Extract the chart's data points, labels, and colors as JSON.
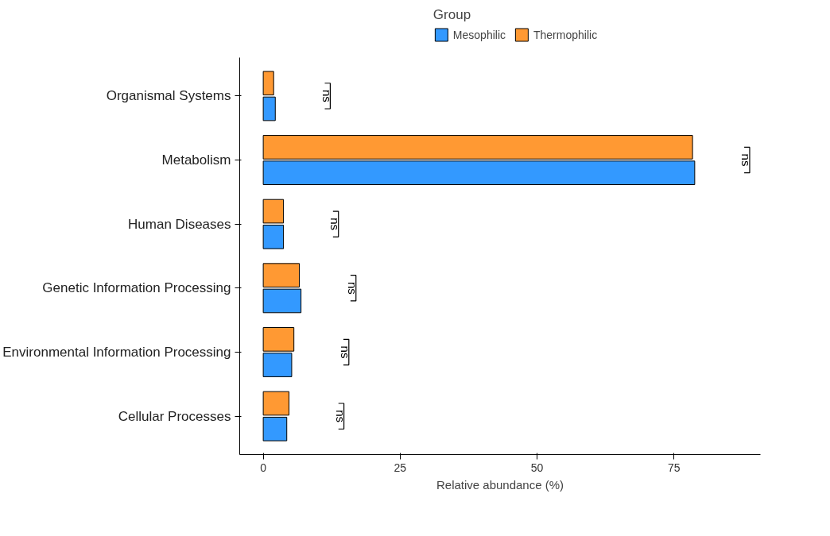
{
  "chart_data": {
    "type": "bar",
    "orientation": "horizontal",
    "xlabel": "Relative abundance (%)",
    "legend_title": "Group",
    "legend": "top",
    "categories": [
      "Organismal Systems",
      "Metabolism",
      "Human Diseases",
      "Genetic Information Processing",
      "Environmental Information Processing",
      "Cellular Processes"
    ],
    "series": [
      {
        "name": "Mesophilic",
        "color": "#3399ff",
        "values": [
          2.2,
          78.8,
          3.7,
          6.9,
          5.2,
          4.3
        ]
      },
      {
        "name": "Thermophilic",
        "color": "#ff9933",
        "values": [
          1.9,
          78.4,
          3.7,
          6.6,
          5.6,
          4.7
        ]
      }
    ],
    "xlim": [
      -4.3,
      90.8
    ],
    "xticks": [
      0,
      25,
      50,
      75
    ],
    "grid": false,
    "annotations": [
      "ns",
      "ns",
      "ns",
      "ns",
      "ns",
      "ns"
    ]
  }
}
